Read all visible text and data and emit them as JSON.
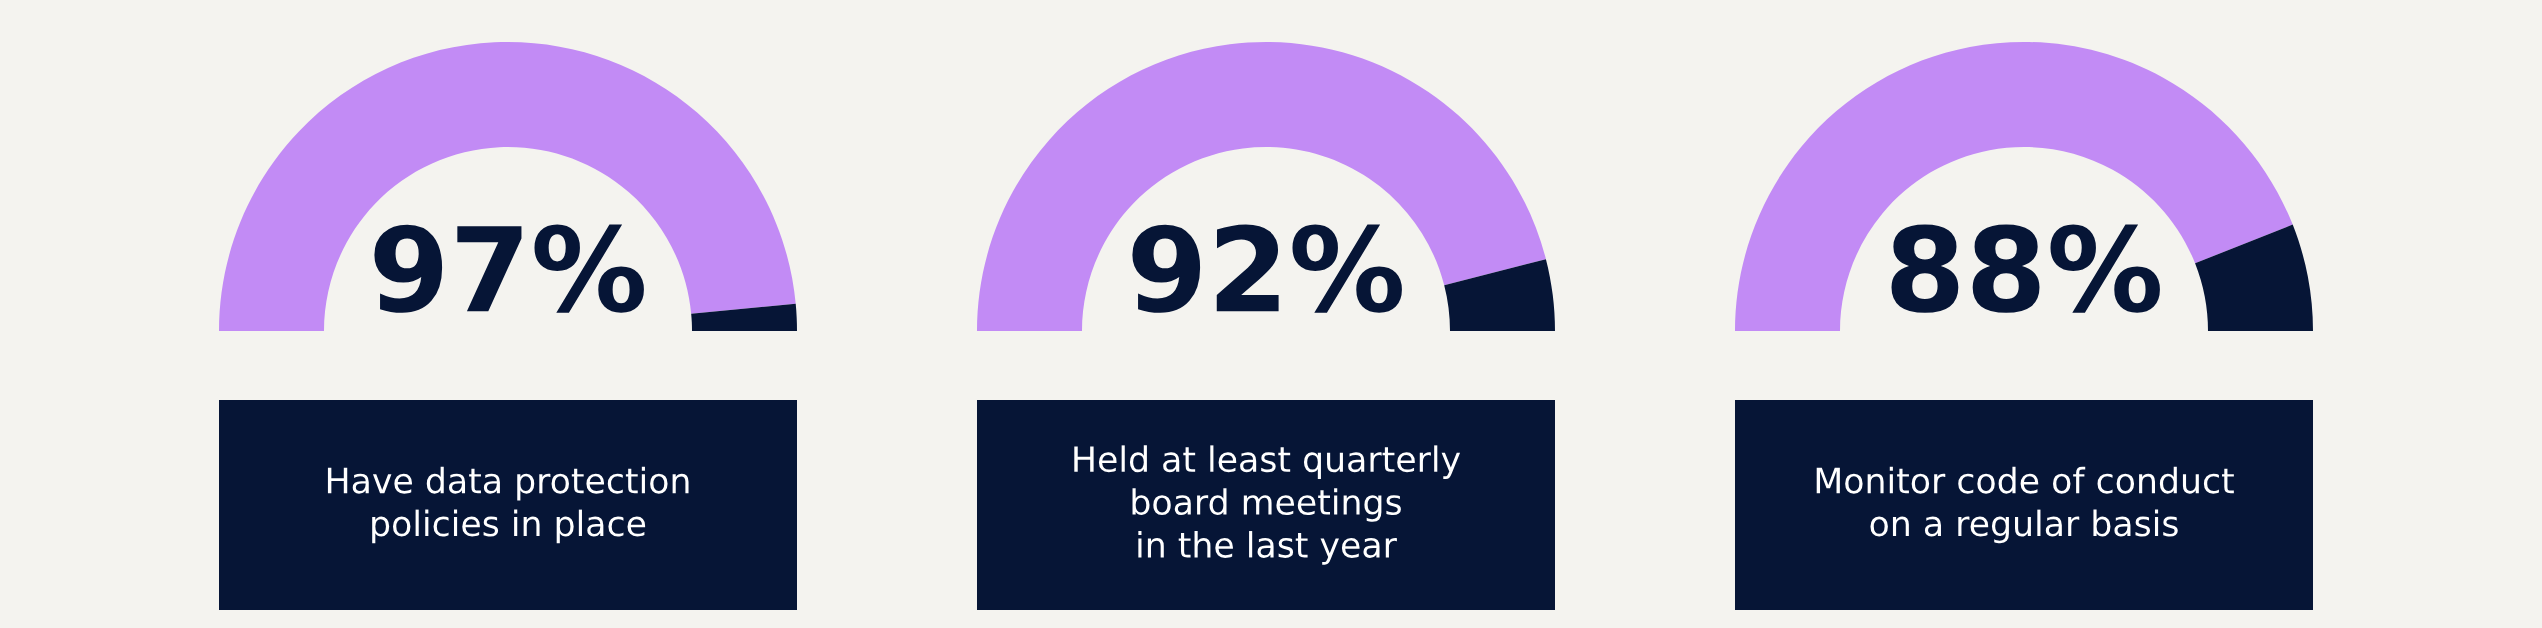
{
  "chart_data": [
    {
      "type": "donut",
      "categories": [
        null,
        null
      ],
      "values": [
        97,
        3
      ],
      "colors": [
        "#c28bf5",
        "#061536"
      ],
      "value_labels": [
        "97%",
        null
      ],
      "title": "Have data protection\npolicies in place"
    },
    {
      "type": "donut",
      "categories": [
        null,
        null
      ],
      "values": [
        92,
        8
      ],
      "colors": [
        "#c28bf5",
        "#061536"
      ],
      "value_labels": [
        "92%",
        null
      ],
      "title": "Held at least quarterly\nboard meetings\nin the last year"
    },
    {
      "type": "donut",
      "categories": [
        null,
        null
      ],
      "values": [
        88,
        12
      ],
      "colors": [
        "#c28bf5",
        "#061536"
      ],
      "value_labels": [
        "88%",
        null
      ],
      "title": "Monitor code of conduct\non a regular basis"
    }
  ]
}
